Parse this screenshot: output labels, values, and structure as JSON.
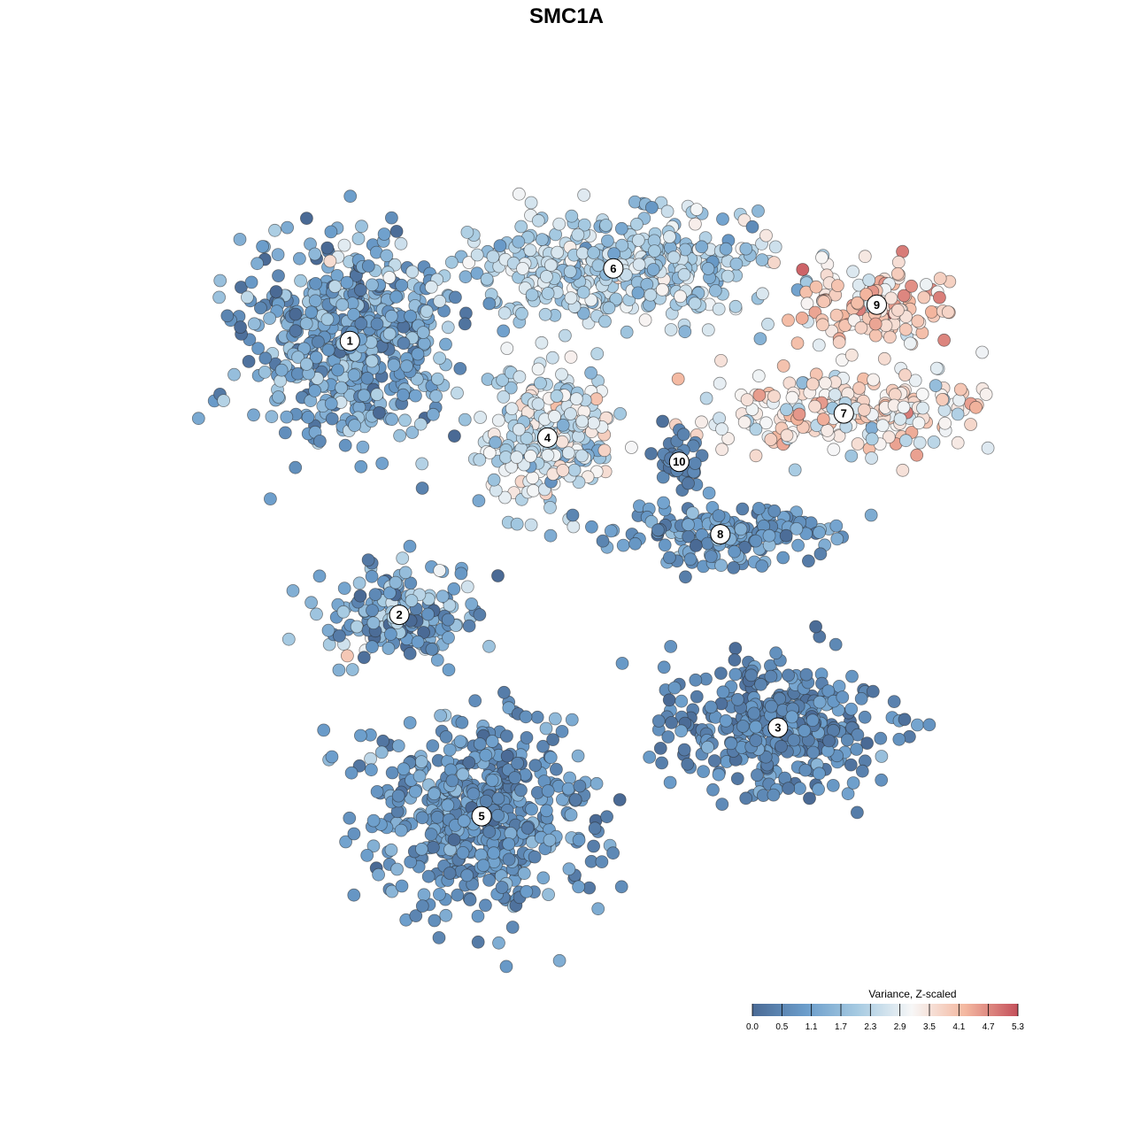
{
  "chart_data": {
    "type": "scatter",
    "title": "SMC1A",
    "xlabel": "",
    "ylabel": "",
    "grid": false,
    "legend_placement": "bottom-right",
    "legend": {
      "title": "Variance, Z-scaled",
      "ticks": [
        "0.0",
        "0.5",
        "1.1",
        "1.7",
        "2.3",
        "2.9",
        "3.5",
        "4.1",
        "4.7",
        "5.3"
      ],
      "min": 0.0,
      "max": 5.3,
      "colors": [
        "#4a6a95",
        "#6b9dcb",
        "#a7cbe2",
        "#f7f7f7",
        "#f4b8a0",
        "#c4505b"
      ]
    },
    "clusters": [
      {
        "label": "1",
        "x": -0.58,
        "y": 0.56,
        "mean_value": 1.2
      },
      {
        "label": "2",
        "x": -0.46,
        "y": -0.12,
        "mean_value": 1.3
      },
      {
        "label": "3",
        "x": 0.46,
        "y": -0.4,
        "mean_value": 0.7
      },
      {
        "label": "4",
        "x": -0.1,
        "y": 0.32,
        "mean_value": 2.6
      },
      {
        "label": "5",
        "x": -0.26,
        "y": -0.62,
        "mean_value": 0.9
      },
      {
        "label": "6",
        "x": 0.06,
        "y": 0.74,
        "mean_value": 2.2
      },
      {
        "label": "7",
        "x": 0.62,
        "y": 0.38,
        "mean_value": 3.4
      },
      {
        "label": "8",
        "x": 0.32,
        "y": 0.08,
        "mean_value": 1.0
      },
      {
        "label": "9",
        "x": 0.7,
        "y": 0.65,
        "mean_value": 3.8
      },
      {
        "label": "10",
        "x": 0.22,
        "y": 0.26,
        "mean_value": 0.5
      }
    ]
  }
}
